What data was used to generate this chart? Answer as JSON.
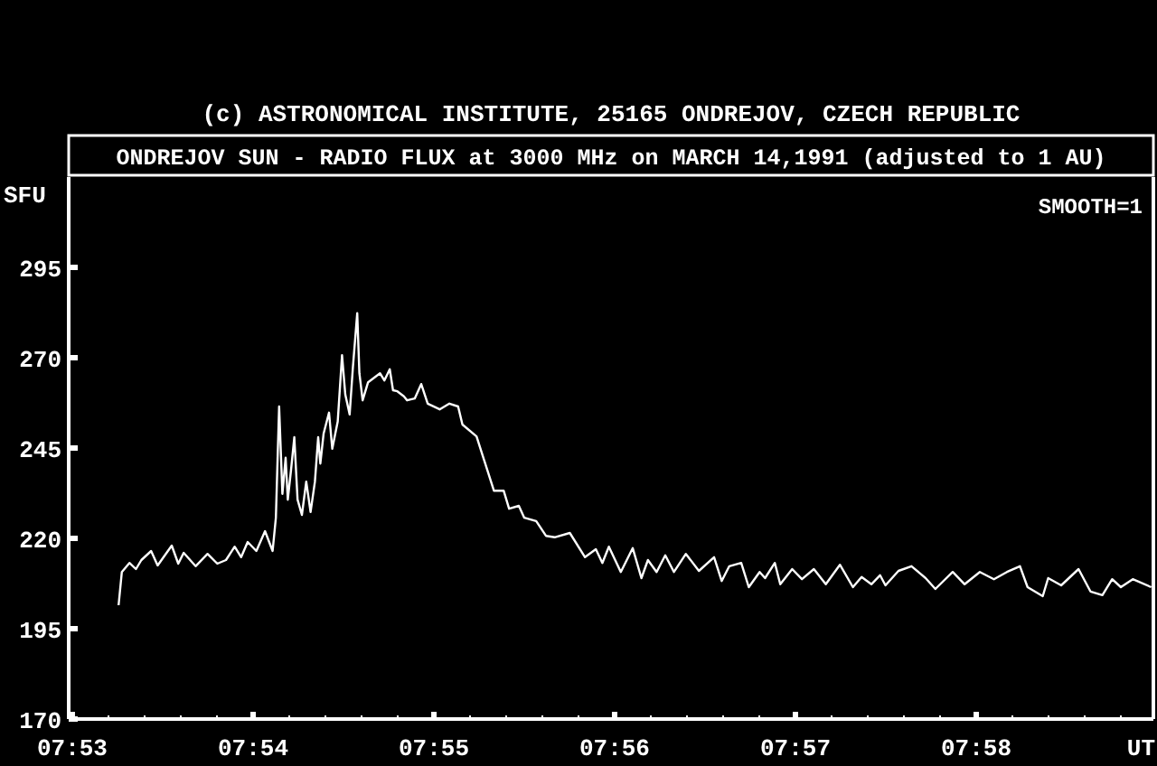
{
  "chart_data": {
    "type": "line",
    "title": "(c) ASTRONOMICAL INSTITUTE, 25165 ONDREJOV, CZECH REPUBLIC",
    "subtitle": "ONDREJOV SUN - RADIO FLUX at 3000 MHz on MARCH 14,1991 (adjusted to 1 AU)",
    "ylabel": "SFU",
    "xlabel": "UT",
    "annotations": [
      "SMOOTH=1"
    ],
    "xlim": [
      7.883,
      7.983
    ],
    "ylim": [
      170,
      320
    ],
    "xticks": [
      {
        "value": 7.88333,
        "label": "07:53"
      },
      {
        "value": 7.88667,
        "label": null
      },
      {
        "value": 7.89,
        "label": null
      },
      {
        "value": 7.89333,
        "label": null
      },
      {
        "value": 7.89667,
        "label": null
      },
      {
        "value": 7.9,
        "label": "07:54"
      },
      {
        "value": 7.90333,
        "label": null
      },
      {
        "value": 7.90667,
        "label": null
      },
      {
        "value": 7.91,
        "label": null
      },
      {
        "value": 7.91333,
        "label": null
      },
      {
        "value": 7.91667,
        "label": "07:55"
      },
      {
        "value": 7.92,
        "label": null
      },
      {
        "value": 7.92333,
        "label": null
      },
      {
        "value": 7.92667,
        "label": null
      },
      {
        "value": 7.93,
        "label": null
      },
      {
        "value": 7.93333,
        "label": "07:56"
      },
      {
        "value": 7.93667,
        "label": null
      },
      {
        "value": 7.94,
        "label": null
      },
      {
        "value": 7.94333,
        "label": null
      },
      {
        "value": 7.94667,
        "label": null
      },
      {
        "value": 7.95,
        "label": "07:57"
      },
      {
        "value": 7.95333,
        "label": null
      },
      {
        "value": 7.95667,
        "label": null
      },
      {
        "value": 7.96,
        "label": null
      },
      {
        "value": 7.96333,
        "label": null
      },
      {
        "value": 7.96667,
        "label": "07:58"
      },
      {
        "value": 7.97,
        "label": null
      },
      {
        "value": 7.97333,
        "label": null
      },
      {
        "value": 7.97667,
        "label": null
      },
      {
        "value": 7.98,
        "label": null
      }
    ],
    "yticks": [
      170,
      195,
      220,
      245,
      270,
      295
    ],
    "grid": false,
    "marker": "none",
    "line_style": "solid",
    "x": [
      7.8876,
      7.8879,
      7.8886,
      7.8892,
      7.8897,
      7.8906,
      7.8912,
      7.8925,
      7.8931,
      7.8936,
      7.8947,
      7.8958,
      7.8967,
      7.8975,
      7.8983,
      7.8989,
      7.8995,
      7.9003,
      7.9011,
      7.9018,
      7.9021,
      7.9024,
      7.9027,
      7.903,
      7.9032,
      7.9035,
      7.9038,
      7.9041,
      7.9045,
      7.9049,
      7.9053,
      7.9057,
      7.906,
      7.9062,
      7.9065,
      7.907,
      7.9073,
      7.9078,
      7.9082,
      7.9085,
      7.9089,
      7.9092,
      7.9096,
      7.9098,
      7.9101,
      7.9106,
      7.9117,
      7.9121,
      7.9126,
      7.9129,
      7.9133,
      7.9139,
      7.9142,
      7.9149,
      7.9155,
      7.9161,
      7.9172,
      7.9181,
      7.9189,
      7.9193,
      7.9206,
      7.9214,
      7.9222,
      7.9231,
      7.9236,
      7.9245,
      7.925,
      7.9261,
      7.927,
      7.9278,
      7.9292,
      7.9306,
      7.9316,
      7.9322,
      7.9328,
      7.9339,
      7.935,
      7.9358,
      7.9364,
      7.9372,
      7.938,
      7.9388,
      7.9399,
      7.9411,
      7.9425,
      7.9432,
      7.9439,
      7.945,
      7.9457,
      7.9467,
      7.9472,
      7.9481,
      7.9486,
      7.9497,
      7.9506,
      7.9517,
      7.9528,
      7.9541,
      7.9553,
      7.9561,
      7.957,
      7.9578,
      7.9583,
      7.9595,
      7.9607,
      7.962,
      7.9629,
      7.9645,
      7.9656,
      7.967,
      7.9683,
      7.9695,
      7.9707,
      7.9714,
      7.9728,
      7.9733,
      7.9745,
      7.9761,
      7.9772,
      7.9783,
      7.9792,
      7.98,
      7.9811,
      7.9828
    ],
    "series": [
      {
        "color": "#ffffff",
        "values": [
          201.5,
          210.7,
          213.2,
          211.5,
          214,
          216.5,
          212.5,
          218,
          213,
          216,
          212.3,
          215.7,
          213,
          214,
          217.7,
          214.8,
          219,
          216.5,
          222,
          216.5,
          225.7,
          256.5,
          232.3,
          242.3,
          230.7,
          239,
          248,
          230.7,
          226.5,
          235.7,
          227.3,
          235.7,
          248,
          240.7,
          249,
          254.8,
          244.8,
          252.3,
          270.7,
          259.8,
          254.3,
          267.3,
          282.3,
          265.7,
          258.2,
          263.2,
          265.7,
          263.7,
          266.8,
          261,
          260.7,
          259.3,
          258.2,
          258.7,
          262.7,
          257.3,
          255.7,
          257.3,
          256.5,
          251.5,
          248.2,
          240.7,
          233.2,
          233.2,
          228.2,
          229,
          225.7,
          224.8,
          220.7,
          220.3,
          221.5,
          214.8,
          217,
          213.2,
          217.7,
          210.7,
          217.3,
          209,
          214,
          210.7,
          215.3,
          210.7,
          215.7,
          211,
          214.8,
          208.2,
          212.3,
          213.2,
          206.5,
          210.7,
          209,
          213.2,
          207.3,
          211.5,
          208.7,
          211.5,
          207.3,
          212.7,
          206.5,
          209.3,
          207.3,
          209.8,
          207,
          211,
          212.3,
          209,
          206,
          210.7,
          207.3,
          210.7,
          208.7,
          210.7,
          212.3,
          206.5,
          204,
          209,
          207,
          211.5,
          205.3,
          204.3,
          208.7,
          206.5,
          208.7,
          206.5
        ]
      }
    ]
  }
}
